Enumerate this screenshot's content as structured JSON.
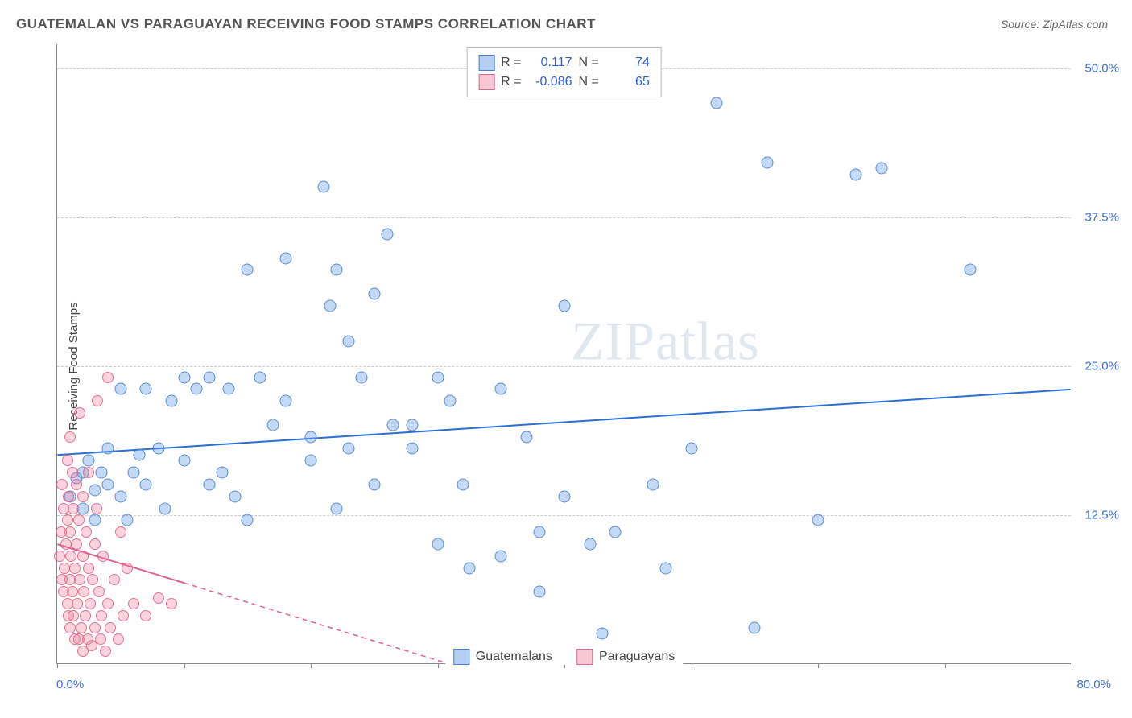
{
  "title": "GUATEMALAN VS PARAGUAYAN RECEIVING FOOD STAMPS CORRELATION CHART",
  "source_label": "Source: ZipAtlas.com",
  "y_axis_label": "Receiving Food Stamps",
  "watermark_zip": "ZIP",
  "watermark_atlas": "atlas",
  "chart": {
    "type": "scatter",
    "xlim": [
      0,
      80
    ],
    "ylim": [
      0,
      52
    ],
    "x_ticks": [
      0,
      10,
      20,
      30,
      40,
      50,
      60,
      70,
      80
    ],
    "y_ticks": [
      12.5,
      25.0,
      37.5,
      50.0
    ],
    "x_tick_labels": {
      "0": "0.0%",
      "80": "80.0%"
    },
    "y_tick_labels": [
      "12.5%",
      "25.0%",
      "37.5%",
      "50.0%"
    ],
    "background_color": "#ffffff",
    "grid_color": "#cccccc",
    "axis_color": "#888888",
    "tick_label_color": "#3b6fd8",
    "series": [
      {
        "name": "Guatemalans",
        "color_fill": "rgba(106,160,230,0.4)",
        "color_stroke": "#4a7fd0",
        "marker_size": 15,
        "r": 0.117,
        "n": 74,
        "trend": {
          "y_at_x0": 17.5,
          "y_at_x80": 23.0,
          "solid": true,
          "color": "#2a6fd8",
          "width": 2
        },
        "points": [
          [
            1,
            14
          ],
          [
            1.5,
            15.5
          ],
          [
            2,
            13
          ],
          [
            2,
            16
          ],
          [
            2.5,
            17
          ],
          [
            3,
            12
          ],
          [
            3,
            14.5
          ],
          [
            3.5,
            16
          ],
          [
            4,
            15
          ],
          [
            4,
            18
          ],
          [
            5,
            14
          ],
          [
            5,
            23
          ],
          [
            5.5,
            12
          ],
          [
            6,
            16
          ],
          [
            6.5,
            17.5
          ],
          [
            7,
            15
          ],
          [
            7,
            23
          ],
          [
            8,
            18
          ],
          [
            8.5,
            13
          ],
          [
            9,
            22
          ],
          [
            10,
            17
          ],
          [
            10,
            24
          ],
          [
            11,
            23
          ],
          [
            12,
            15
          ],
          [
            12,
            24
          ],
          [
            13,
            16
          ],
          [
            13.5,
            23
          ],
          [
            14,
            14
          ],
          [
            15,
            12
          ],
          [
            15,
            33
          ],
          [
            16,
            24
          ],
          [
            17,
            20
          ],
          [
            18,
            22
          ],
          [
            18,
            34
          ],
          [
            20,
            17
          ],
          [
            20,
            19
          ],
          [
            21,
            40
          ],
          [
            21.5,
            30
          ],
          [
            22,
            13
          ],
          [
            22,
            33
          ],
          [
            23,
            18
          ],
          [
            23,
            27
          ],
          [
            24,
            24
          ],
          [
            25,
            15
          ],
          [
            25,
            31
          ],
          [
            26,
            36
          ],
          [
            26.5,
            20
          ],
          [
            28,
            18
          ],
          [
            28,
            20
          ],
          [
            30,
            24
          ],
          [
            30,
            10
          ],
          [
            31,
            22
          ],
          [
            32,
            15
          ],
          [
            32.5,
            8
          ],
          [
            35,
            9
          ],
          [
            35,
            23
          ],
          [
            37,
            19
          ],
          [
            38,
            11
          ],
          [
            38,
            6
          ],
          [
            40,
            14
          ],
          [
            40,
            30
          ],
          [
            42,
            10
          ],
          [
            43,
            2.5
          ],
          [
            44,
            11
          ],
          [
            47,
            15
          ],
          [
            48,
            8
          ],
          [
            50,
            18
          ],
          [
            52,
            47
          ],
          [
            55,
            3
          ],
          [
            56,
            42
          ],
          [
            60,
            12
          ],
          [
            63,
            41
          ],
          [
            65,
            41.5
          ],
          [
            72,
            33
          ]
        ]
      },
      {
        "name": "Paraguayans",
        "color_fill": "rgba(240,130,160,0.35)",
        "color_stroke": "#d86a90",
        "marker_size": 14,
        "r": -0.086,
        "n": 65,
        "trend": {
          "y_at_x0": 10.0,
          "y_at_x20": 3.5,
          "y_at_x80": 0,
          "solid_until_x": 10,
          "color": "#e06090",
          "width": 2
        },
        "points": [
          [
            0.2,
            9
          ],
          [
            0.3,
            11
          ],
          [
            0.4,
            7
          ],
          [
            0.4,
            15
          ],
          [
            0.5,
            6
          ],
          [
            0.5,
            13
          ],
          [
            0.6,
            8
          ],
          [
            0.7,
            10
          ],
          [
            0.8,
            5
          ],
          [
            0.8,
            12
          ],
          [
            0.8,
            17
          ],
          [
            0.9,
            4
          ],
          [
            0.9,
            14
          ],
          [
            1,
            3
          ],
          [
            1,
            7
          ],
          [
            1,
            11
          ],
          [
            1,
            19
          ],
          [
            1.1,
            9
          ],
          [
            1.2,
            6
          ],
          [
            1.2,
            16
          ],
          [
            1.3,
            4
          ],
          [
            1.3,
            13
          ],
          [
            1.4,
            2
          ],
          [
            1.4,
            8
          ],
          [
            1.5,
            10
          ],
          [
            1.5,
            15
          ],
          [
            1.6,
            5
          ],
          [
            1.7,
            2
          ],
          [
            1.7,
            12
          ],
          [
            1.8,
            7
          ],
          [
            1.8,
            21
          ],
          [
            1.9,
            3
          ],
          [
            2,
            1
          ],
          [
            2,
            9
          ],
          [
            2,
            14
          ],
          [
            2.1,
            6
          ],
          [
            2.2,
            4
          ],
          [
            2.3,
            11
          ],
          [
            2.4,
            2
          ],
          [
            2.5,
            8
          ],
          [
            2.5,
            16
          ],
          [
            2.6,
            5
          ],
          [
            2.7,
            1.5
          ],
          [
            2.8,
            7
          ],
          [
            3,
            3
          ],
          [
            3,
            10
          ],
          [
            3.1,
            13
          ],
          [
            3.2,
            22
          ],
          [
            3.3,
            6
          ],
          [
            3.4,
            2
          ],
          [
            3.5,
            4
          ],
          [
            3.6,
            9
          ],
          [
            3.8,
            1
          ],
          [
            4,
            5
          ],
          [
            4,
            24
          ],
          [
            4.2,
            3
          ],
          [
            4.5,
            7
          ],
          [
            4.8,
            2
          ],
          [
            5,
            11
          ],
          [
            5.2,
            4
          ],
          [
            5.5,
            8
          ],
          [
            6,
            5
          ],
          [
            7,
            4
          ],
          [
            8,
            5.5
          ],
          [
            9,
            5
          ]
        ]
      }
    ]
  },
  "legend_top": {
    "rows": [
      {
        "swatch": "blue",
        "r_label": "R =",
        "r_val": "0.117",
        "n_label": "N =",
        "n_val": "74"
      },
      {
        "swatch": "pink",
        "r_label": "R =",
        "r_val": "-0.086",
        "n_label": "N =",
        "n_val": "65"
      }
    ]
  },
  "legend_bottom": {
    "items": [
      {
        "swatch": "blue",
        "label": "Guatemalans"
      },
      {
        "swatch": "pink",
        "label": "Paraguayans"
      }
    ]
  }
}
